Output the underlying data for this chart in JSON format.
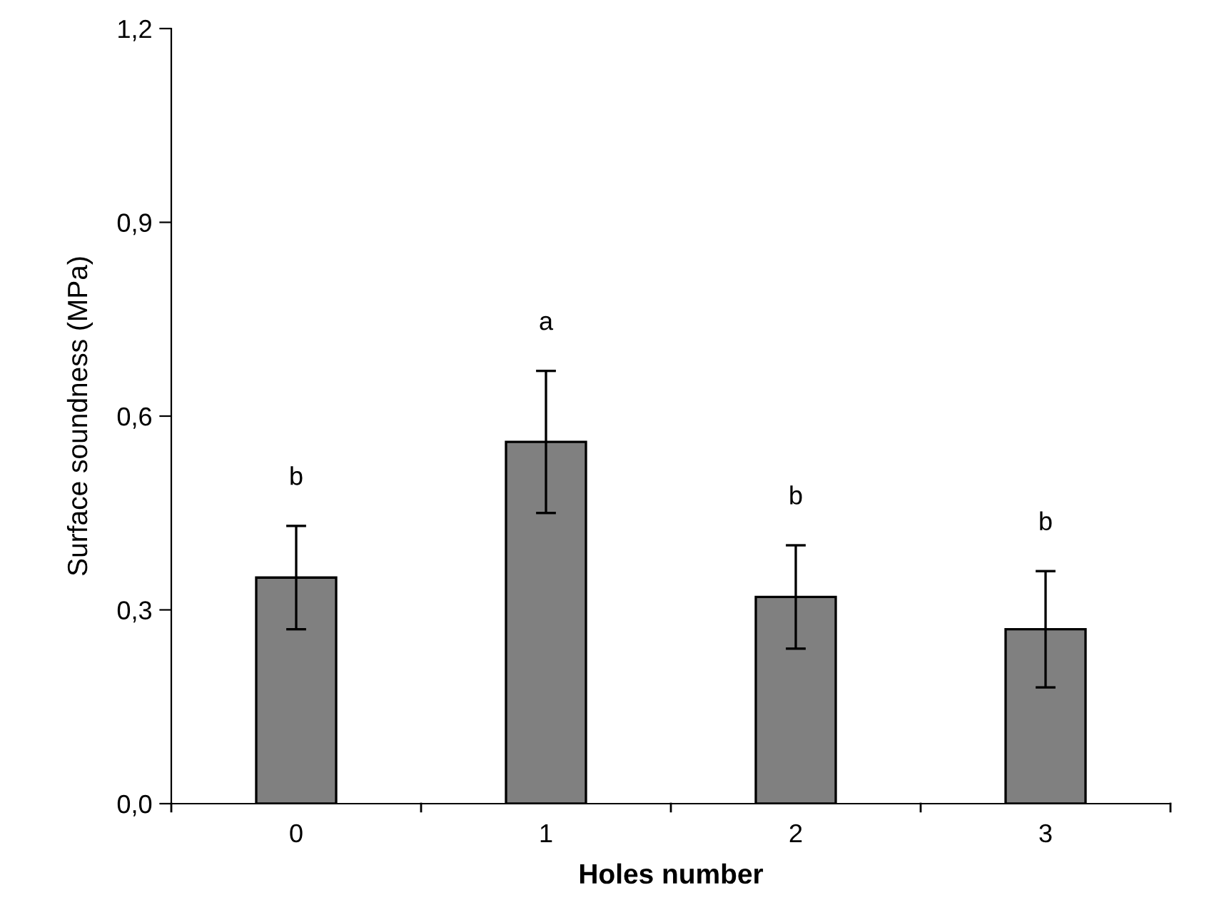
{
  "chart_data": {
    "type": "bar",
    "xlabel": "Holes number",
    "ylabel": "Surface soundness (MPa)",
    "categories": [
      "0",
      "1",
      "2",
      "3"
    ],
    "values": [
      0.35,
      0.56,
      0.32,
      0.27
    ],
    "errors": [
      0.08,
      0.11,
      0.08,
      0.09
    ],
    "color": "#808080",
    "ylim": [
      0,
      1.2
    ],
    "yticks": [
      {
        "value": 0,
        "label": "0,0"
      },
      {
        "value": 0.3,
        "label": "0,3"
      },
      {
        "value": 0.6,
        "label": "0,6"
      },
      {
        "value": 0.9,
        "label": "0,9"
      },
      {
        "value": 1.2,
        "label": "1,2"
      }
    ],
    "grid": false,
    "legend": false,
    "annotations": [
      "b",
      "a",
      "b",
      "b"
    ]
  }
}
